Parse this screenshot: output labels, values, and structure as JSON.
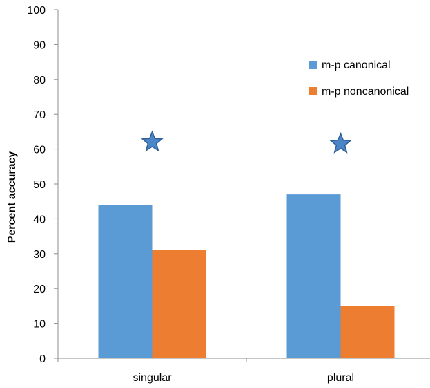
{
  "chart_data": {
    "type": "bar",
    "title": "",
    "xlabel": "",
    "ylabel": "Percent accuracy",
    "ylim": [
      0,
      100
    ],
    "yticks": [
      0,
      10,
      20,
      30,
      40,
      50,
      60,
      70,
      80,
      90,
      100
    ],
    "categories": [
      "singular",
      "plural"
    ],
    "series": [
      {
        "name": "m-p canonical",
        "values": [
          44,
          47
        ],
        "color": "#5B9BD5"
      },
      {
        "name": "m-p noncanonical",
        "values": [
          31,
          15
        ],
        "color": "#ED7D31"
      }
    ],
    "annotations": [
      {
        "type": "star-marker",
        "category": "singular",
        "y": 62,
        "color": "#4A86C8"
      },
      {
        "type": "star-marker",
        "category": "plural",
        "y": 61.5,
        "color": "#4A86C8"
      }
    ],
    "grid": false,
    "legend_position": "top-right"
  }
}
